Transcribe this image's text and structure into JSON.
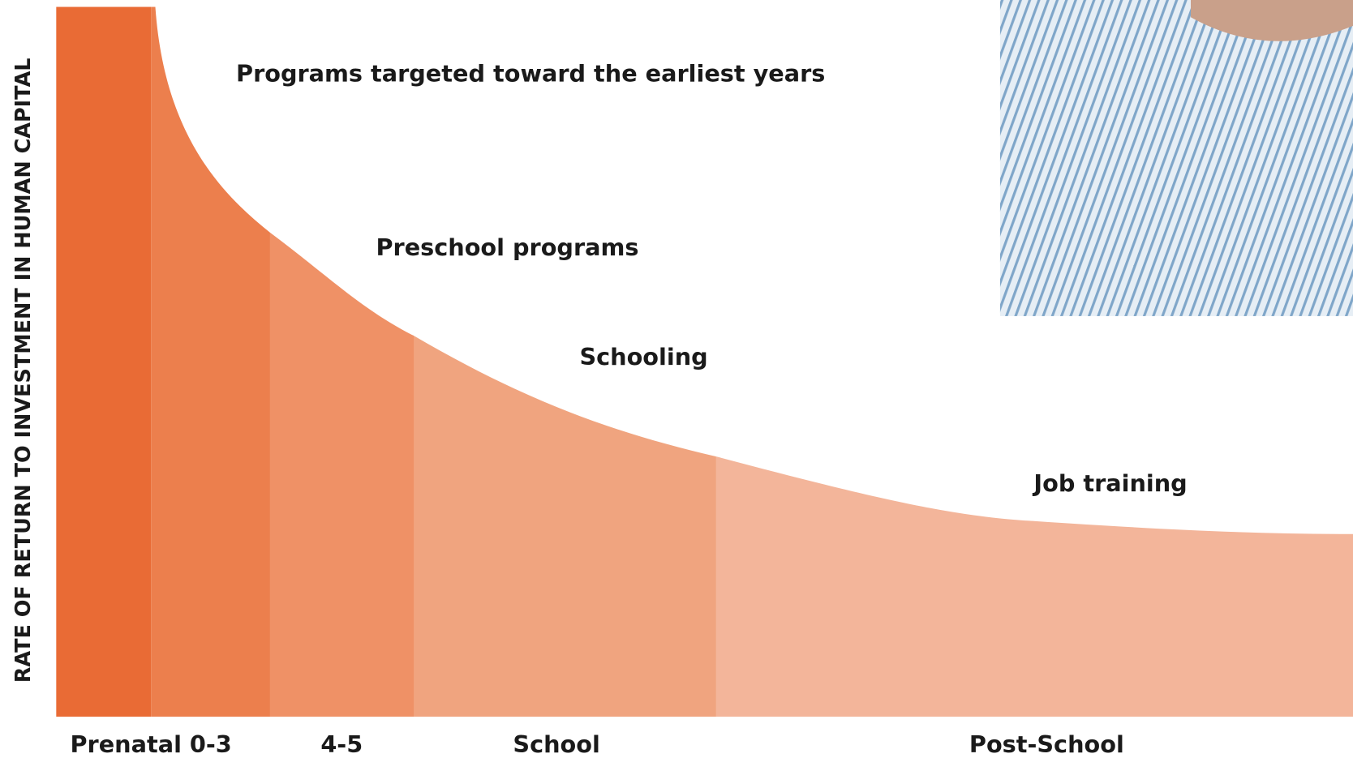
{
  "chart_data": {
    "type": "area",
    "y_label": "RATE OF RETURN TO INVESTMENT IN HUMAN CAPITAL",
    "categories": [
      "Prenatal 0-3",
      "4-5",
      "School",
      "Post-School"
    ],
    "annotations": [
      "Programs targeted toward the earliest years",
      "Preschool programs",
      "Schooling",
      "Job training"
    ]
  }
}
